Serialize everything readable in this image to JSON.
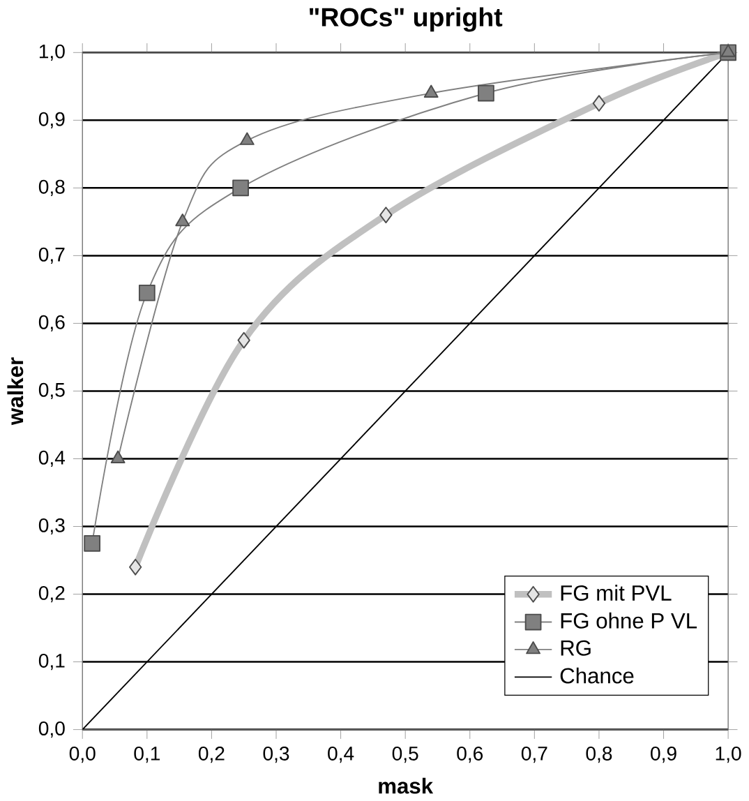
{
  "chart_data": {
    "type": "line",
    "title": "\"ROCs\" upright",
    "xlabel": "mask",
    "ylabel": "walker",
    "xlim": [
      0,
      1
    ],
    "ylim": [
      0,
      1
    ],
    "xticks": [
      {
        "value": 0,
        "label": "0,0"
      },
      {
        "value": 0.1,
        "label": "0,1"
      },
      {
        "value": 0.2,
        "label": "0,2"
      },
      {
        "value": 0.3,
        "label": "0,3"
      },
      {
        "value": 0.4,
        "label": "0,4"
      },
      {
        "value": 0.5,
        "label": "0,5"
      },
      {
        "value": 0.6,
        "label": "0,6"
      },
      {
        "value": 0.7,
        "label": "0,7"
      },
      {
        "value": 0.8,
        "label": "0,8"
      },
      {
        "value": 0.9,
        "label": "0,9"
      },
      {
        "value": 1,
        "label": "1,0"
      }
    ],
    "yticks": [
      {
        "value": 0,
        "label": "0,0"
      },
      {
        "value": 0.1,
        "label": "0,1"
      },
      {
        "value": 0.2,
        "label": "0,2"
      },
      {
        "value": 0.3,
        "label": "0,3"
      },
      {
        "value": 0.4,
        "label": "0,4"
      },
      {
        "value": 0.5,
        "label": "0,5"
      },
      {
        "value": 0.6,
        "label": "0,6"
      },
      {
        "value": 0.7,
        "label": "0,7"
      },
      {
        "value": 0.8,
        "label": "0,8"
      },
      {
        "value": 0.9,
        "label": "0,9"
      },
      {
        "value": 1,
        "label": "1,0"
      }
    ],
    "grid": "y",
    "legend": "bottom right",
    "series": [
      {
        "name": "FG mit PVL",
        "color": "#c0c0c0",
        "marker": "diamond",
        "x": [
          0.082,
          0.25,
          0.47,
          0.8,
          1
        ],
        "values": [
          0.24,
          0.575,
          0.76,
          0.925,
          1
        ]
      },
      {
        "name": "FG ohne P VL",
        "color": "#808080",
        "marker": "square",
        "x": [
          0.015,
          0.1,
          0.245,
          0.625,
          1
        ],
        "values": [
          0.275,
          0.645,
          0.8,
          0.94,
          1
        ]
      },
      {
        "name": "RG",
        "color": "#808080",
        "marker": "triangle",
        "x": [
          0.055,
          0.155,
          0.255,
          0.54,
          1
        ],
        "values": [
          0.4,
          0.75,
          0.87,
          0.94,
          1
        ]
      },
      {
        "name": "Chance",
        "color": "#000000",
        "marker": "none",
        "x": [
          0,
          1
        ],
        "values": [
          0,
          1
        ]
      }
    ]
  }
}
